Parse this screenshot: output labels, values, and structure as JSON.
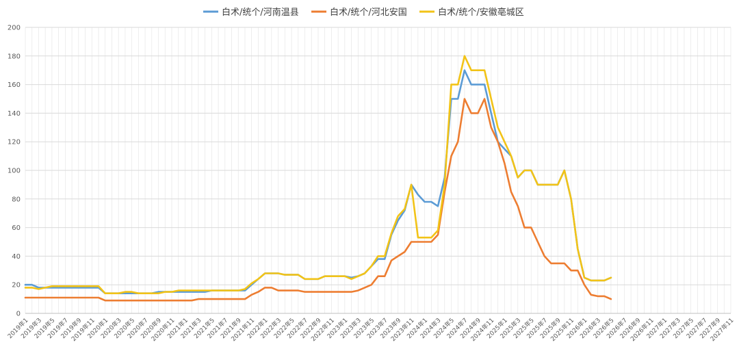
{
  "chart_data": {
    "type": "line",
    "title": "",
    "xlabel": "",
    "ylabel": "",
    "ylim": [
      0,
      200
    ],
    "yticks": [
      0,
      20,
      40,
      60,
      80,
      100,
      120,
      140,
      160,
      180,
      200
    ],
    "legend_position": "top",
    "grid": true,
    "x_tick_labels": [
      "2019年1",
      "2019年3",
      "2019年5",
      "2019年7",
      "2019年9",
      "2019年11",
      "2020年1",
      "2020年3",
      "2020年5",
      "2020年7",
      "2020年9",
      "2020年11",
      "2021年1",
      "2021年3",
      "2021年5",
      "2021年7",
      "2021年9",
      "2021年11",
      "2022年1",
      "2022年3",
      "2022年5",
      "2022年7",
      "2022年9",
      "2022年11",
      "2023年1",
      "2023年3",
      "2023年5",
      "2023年7",
      "2023年9",
      "2023年11",
      "2024年1",
      "2024年3",
      "2024年5",
      "2024年7",
      "2024年9",
      "2024年11",
      "2025年1",
      "2025年3",
      "2025年5",
      "2025年7",
      "2025年9",
      "2025年11",
      "2026年1",
      "2026年3",
      "2026年5",
      "2026年7",
      "2026年9",
      "2026年11",
      "2027年1",
      "2027年3",
      "2027年5",
      "2027年7",
      "2027年9",
      "2027年11"
    ],
    "series": [
      {
        "name": "白术/统个/河南温县",
        "color": "#5B9BD5",
        "values": [
          20,
          20,
          18,
          18,
          18,
          18,
          18,
          18,
          18,
          18,
          18,
          18,
          14,
          14,
          14,
          14,
          14,
          14,
          14,
          14,
          15,
          15,
          15,
          15,
          15,
          15,
          15,
          15,
          16,
          16,
          16,
          16,
          16,
          16,
          20,
          24,
          28,
          28,
          28,
          27,
          27,
          27,
          24,
          24,
          24,
          26,
          26,
          26,
          26,
          25,
          26,
          28,
          33,
          38,
          38,
          55,
          65,
          72,
          90,
          83,
          78,
          78,
          75,
          95,
          150,
          150,
          170,
          160,
          160,
          160,
          140,
          120,
          115,
          110,
          95,
          100,
          100,
          90,
          90,
          90,
          90,
          100,
          80,
          45,
          25,
          23,
          23,
          23,
          25
        ]
      },
      {
        "name": "白术/统个/河北安国",
        "color": "#ED7D31",
        "values": [
          11,
          11,
          11,
          11,
          11,
          11,
          11,
          11,
          11,
          11,
          11,
          11,
          9,
          9,
          9,
          9,
          9,
          9,
          9,
          9,
          9,
          9,
          9,
          9,
          9,
          9,
          10,
          10,
          10,
          10,
          10,
          10,
          10,
          10,
          13,
          15,
          18,
          18,
          16,
          16,
          16,
          16,
          15,
          15,
          15,
          15,
          15,
          15,
          15,
          15,
          16,
          18,
          20,
          26,
          26,
          37,
          40,
          43,
          50,
          50,
          50,
          50,
          55,
          85,
          110,
          120,
          150,
          140,
          140,
          150,
          130,
          120,
          105,
          85,
          75,
          60,
          60,
          50,
          40,
          35,
          35,
          35,
          30,
          30,
          20,
          13,
          12,
          12,
          10
        ]
      },
      {
        "name": "白术/统个/安徽亳城区",
        "color": "#F2C317",
        "values": [
          18,
          18,
          17,
          18,
          19,
          19,
          19,
          19,
          19,
          19,
          19,
          19,
          14,
          14,
          14,
          15,
          15,
          14,
          14,
          14,
          14,
          15,
          15,
          16,
          16,
          16,
          16,
          16,
          16,
          16,
          16,
          16,
          16,
          17,
          21,
          24,
          28,
          28,
          28,
          27,
          27,
          27,
          24,
          24,
          24,
          26,
          26,
          26,
          26,
          24,
          26,
          28,
          33,
          40,
          40,
          56,
          68,
          73,
          90,
          53,
          53,
          53,
          58,
          90,
          160,
          160,
          180,
          170,
          170,
          170,
          150,
          130,
          120,
          110,
          95,
          100,
          100,
          90,
          90,
          90,
          90,
          100,
          80,
          45,
          25,
          23,
          23,
          23,
          25
        ]
      }
    ]
  }
}
